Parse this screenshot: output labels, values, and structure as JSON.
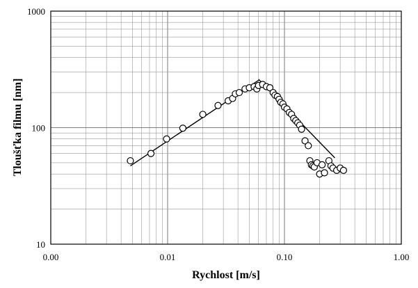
{
  "chart_data": {
    "type": "scatter",
    "title": "",
    "xlabel": "Rychlost [m/s]",
    "ylabel": "Tloušťka filmu [nm]",
    "x_scale": "log",
    "y_scale": "log",
    "xlim": [
      0.001,
      1
    ],
    "ylim": [
      10,
      1000
    ],
    "grid": true,
    "x_ticks": [
      0.001,
      0.01,
      0.1,
      1
    ],
    "x_tick_labels": [
      "0.00",
      "0.01",
      "0.10",
      "1.00"
    ],
    "y_ticks": [
      10,
      100,
      1000
    ],
    "y_tick_labels": [
      "10",
      "100",
      "1000"
    ],
    "series": [
      {
        "marker": "open-circle",
        "x": [
          0.0048,
          0.0072,
          0.0098,
          0.0135,
          0.02,
          0.027,
          0.033,
          0.036,
          0.038,
          0.041,
          0.046,
          0.05,
          0.055,
          0.058,
          0.06,
          0.065,
          0.07,
          0.075,
          0.08,
          0.083,
          0.087,
          0.09,
          0.093,
          0.097,
          0.1,
          0.105,
          0.11,
          0.115,
          0.12,
          0.125,
          0.13,
          0.135,
          0.14,
          0.15,
          0.16,
          0.165,
          0.17,
          0.175,
          0.18,
          0.19,
          0.2,
          0.21,
          0.22,
          0.24,
          0.25,
          0.26,
          0.28,
          0.3,
          0.32
        ],
        "y": [
          52,
          60,
          80,
          99,
          130,
          155,
          170,
          178,
          195,
          200,
          215,
          220,
          225,
          215,
          230,
          235,
          225,
          220,
          200,
          190,
          185,
          175,
          165,
          160,
          150,
          145,
          135,
          130,
          120,
          115,
          110,
          105,
          97,
          77,
          70,
          52,
          48,
          47,
          46,
          50,
          40,
          48,
          41,
          52,
          47,
          45,
          43,
          45,
          43
        ]
      },
      {
        "type": "line",
        "x": [
          0.0048,
          0.06
        ],
        "y": [
          47,
          255
        ]
      },
      {
        "type": "line",
        "x": [
          0.06,
          0.27
        ],
        "y": [
          260,
          55
        ]
      }
    ]
  }
}
